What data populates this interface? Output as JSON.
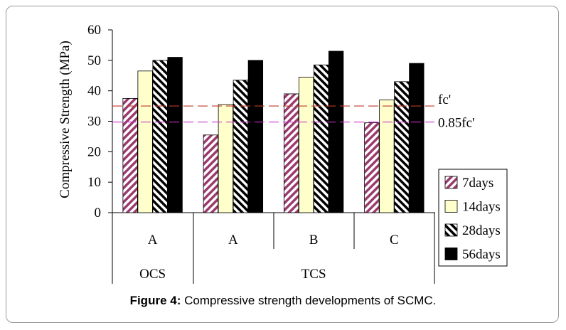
{
  "figure": {
    "caption_label": "Figure 4:",
    "caption_text": " Compressive strength developments of SCMC."
  },
  "chart_data": {
    "type": "bar",
    "ylabel": "Compressive Strength (MPa)",
    "ylim": [
      0,
      60
    ],
    "yticks": [
      "0",
      "10",
      "20",
      "30",
      "40",
      "50",
      "60"
    ],
    "ytick_values": [
      0,
      10,
      20,
      30,
      40,
      50,
      60
    ],
    "grid": false,
    "legend_position": "right",
    "categories": [
      "A",
      "A",
      "B",
      "C"
    ],
    "groups": [
      {
        "label": "OCS",
        "span": [
          0,
          0
        ]
      },
      {
        "label": "TCS",
        "span": [
          1,
          3
        ]
      }
    ],
    "series": [
      {
        "name": "7days",
        "pattern": "diagonal-hatch",
        "color": "#9b3a6e",
        "values": [
          37.5,
          25.5,
          39,
          29.5
        ]
      },
      {
        "name": "14days",
        "pattern": "solid",
        "color": "#ffffcc",
        "values": [
          46.5,
          35.5,
          44.5,
          37
        ]
      },
      {
        "name": "28days",
        "pattern": "diagonal-hatch",
        "color": "#000000",
        "values": [
          50,
          43.5,
          48.5,
          43
        ]
      },
      {
        "name": "56days",
        "pattern": "solid",
        "color": "#000000",
        "values": [
          51,
          50,
          53,
          49
        ]
      }
    ],
    "reference_lines": [
      {
        "label": "fc'",
        "value": 35,
        "color": "#c0392b"
      },
      {
        "label": "0.85fc'",
        "value": 29.75,
        "color": "#cc33cc"
      }
    ]
  }
}
